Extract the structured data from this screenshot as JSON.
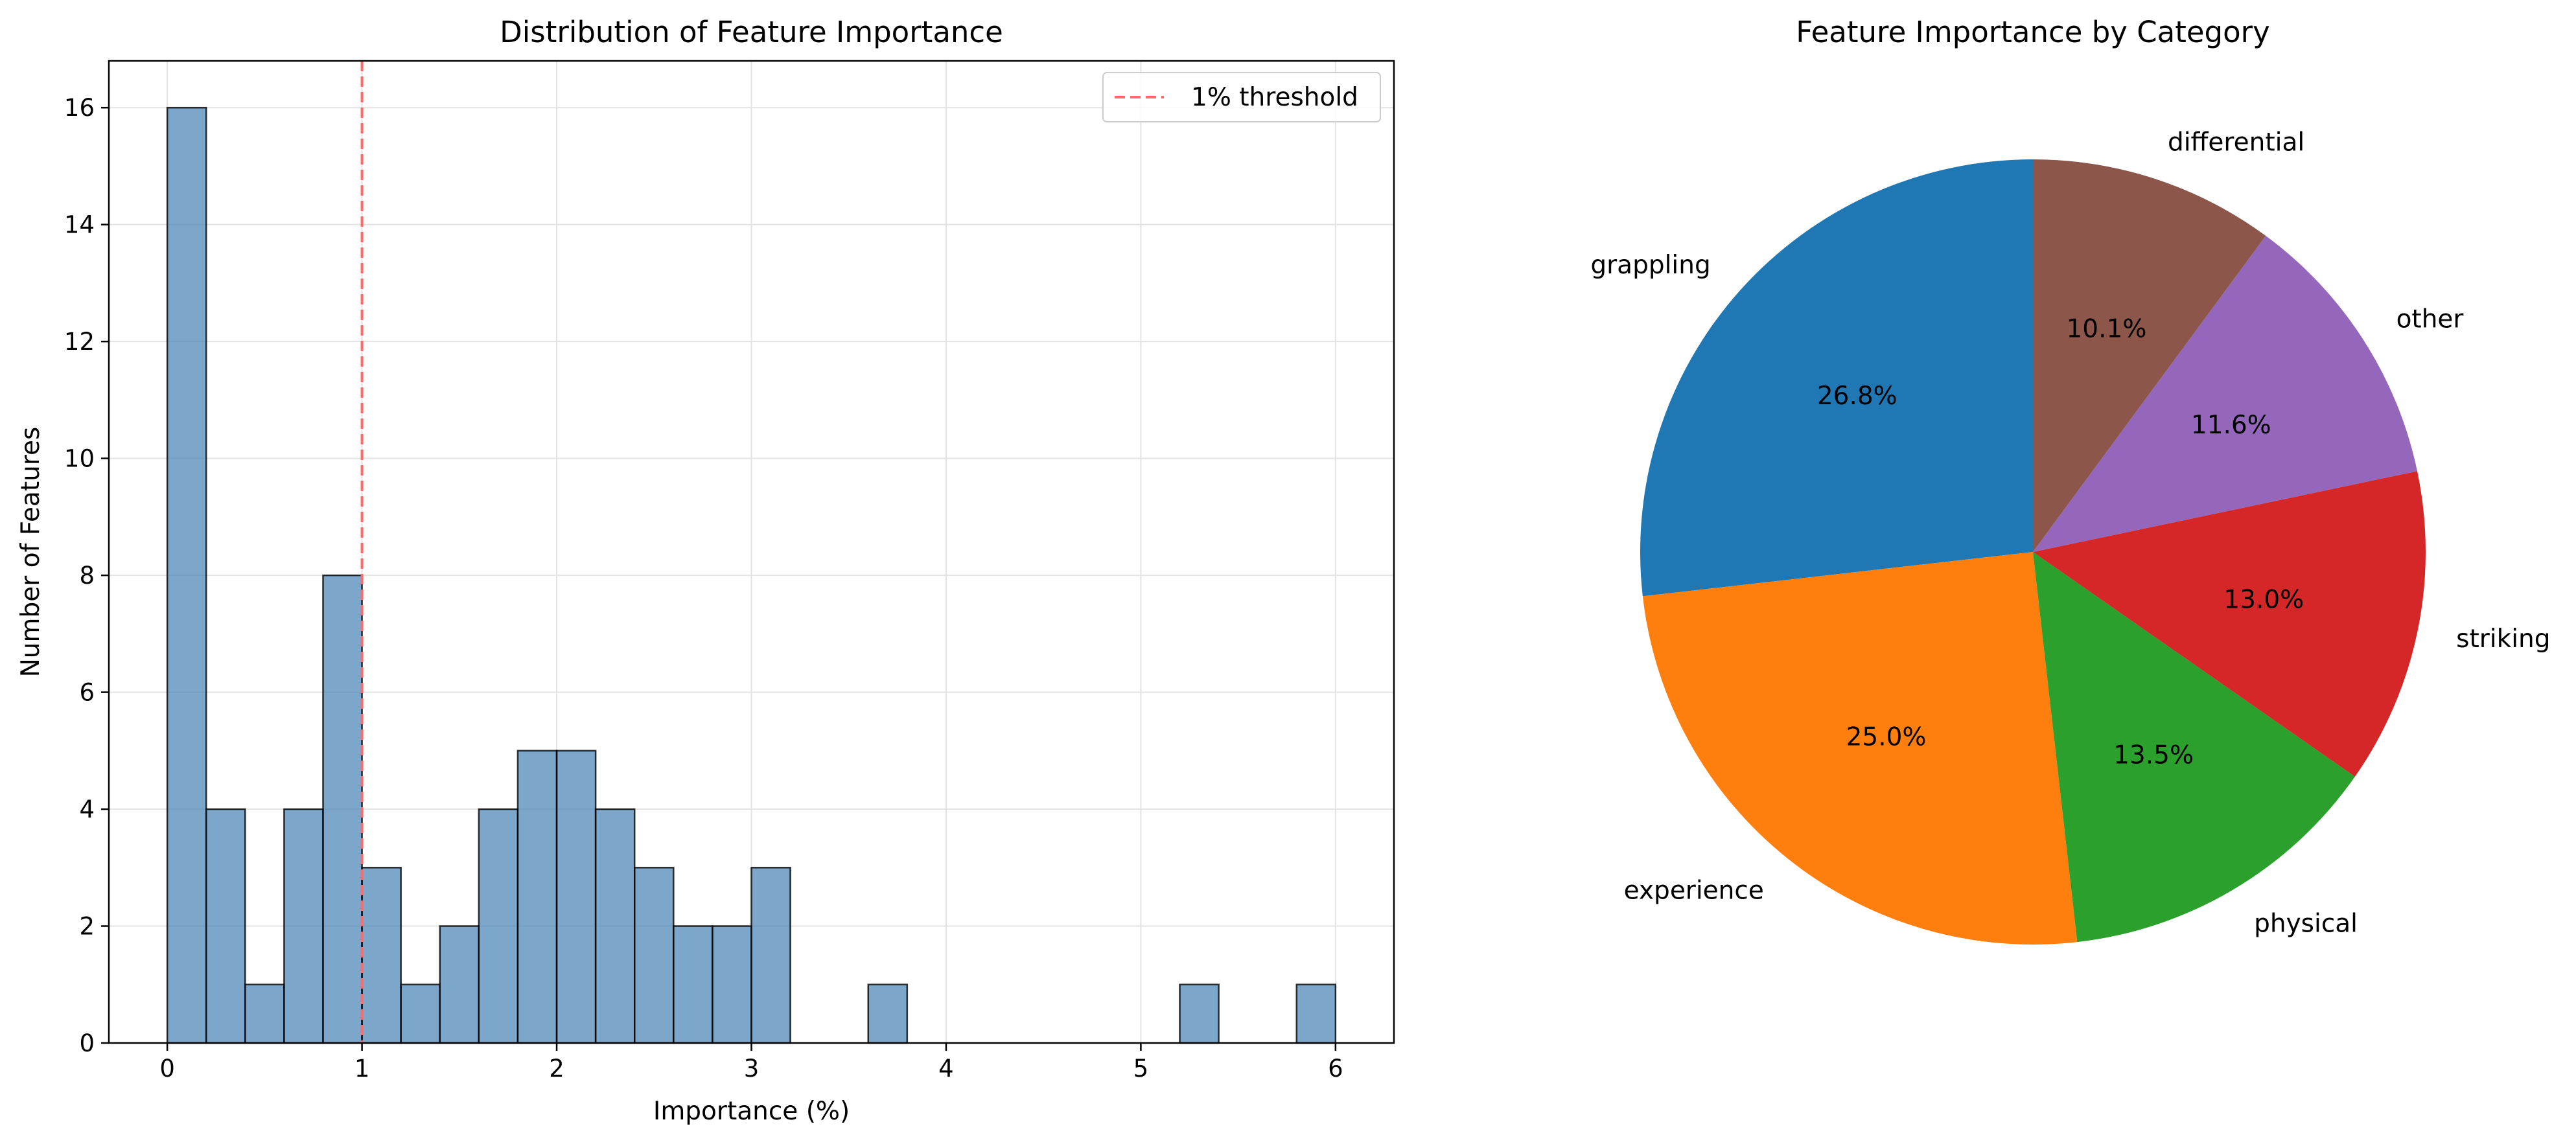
{
  "chart_data": [
    {
      "type": "bar",
      "subtype": "histogram",
      "title": "Distribution of Feature Importance",
      "xlabel": "Importance (%)",
      "ylabel": "Number of Features",
      "xlim": [
        -0.3,
        6.3
      ],
      "ylim": [
        0,
        16.8
      ],
      "xticks": [
        0,
        1,
        2,
        3,
        4,
        5,
        6
      ],
      "yticks": [
        0,
        2,
        4,
        6,
        8,
        10,
        12,
        14,
        16
      ],
      "grid": true,
      "bin_edges": [
        0,
        0.2,
        0.4,
        0.6,
        0.8,
        1.0,
        1.2,
        1.4,
        1.6,
        1.8,
        2.0,
        2.2,
        2.4,
        2.6,
        2.8,
        3.0,
        3.2,
        3.4,
        3.6,
        3.8,
        4.0,
        4.2,
        4.4,
        4.6,
        4.8,
        5.0,
        5.2,
        5.4,
        5.6,
        5.8,
        6.0
      ],
      "values": [
        16,
        4,
        1,
        4,
        8,
        3,
        1,
        2,
        4,
        5,
        5,
        4,
        3,
        2,
        2,
        3,
        0,
        0,
        1,
        0,
        0,
        0,
        0,
        0,
        0,
        0,
        1,
        0,
        0,
        1
      ],
      "bar_color": "#4682b4",
      "threshold": {
        "x": 1,
        "label": "1% threshold",
        "color": "#ff6b6b"
      },
      "legend": {
        "position": "top-right",
        "entries": [
          "1% threshold"
        ]
      }
    },
    {
      "type": "pie",
      "title": "Feature Importance by Category",
      "start_angle_deg": 90,
      "direction": "counterclockwise",
      "slices": [
        {
          "label": "grappling",
          "value": 26.8,
          "pct_label": "26.8%",
          "color": "#1f77b4"
        },
        {
          "label": "experience",
          "value": 25.0,
          "pct_label": "25.0%",
          "color": "#ff7f0e"
        },
        {
          "label": "physical",
          "value": 13.5,
          "pct_label": "13.5%",
          "color": "#2ca02c"
        },
        {
          "label": "striking",
          "value": 13.0,
          "pct_label": "13.0%",
          "color": "#d62728"
        },
        {
          "label": "other",
          "value": 11.6,
          "pct_label": "11.6%",
          "color": "#9467bd"
        },
        {
          "label": "differential",
          "value": 10.1,
          "pct_label": "10.1%",
          "color": "#8c564b"
        }
      ]
    }
  ]
}
